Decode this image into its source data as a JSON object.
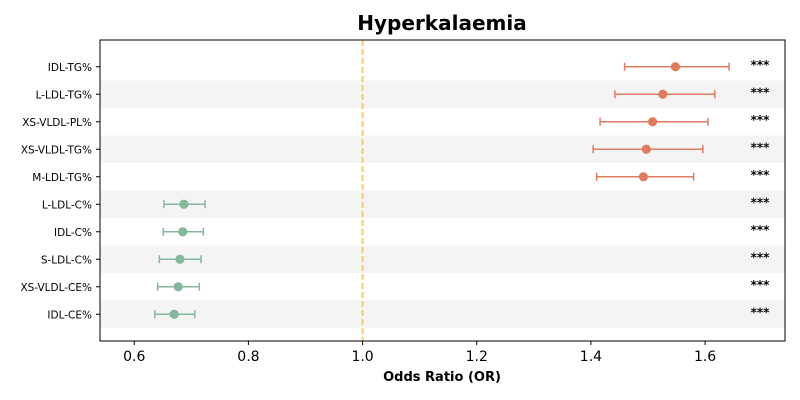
{
  "chart_data": {
    "type": "forest",
    "title": "Hyperkalaemia",
    "xlabel": "Odds Ratio (OR)",
    "xlim": [
      0.54,
      1.74
    ],
    "xticks": [
      "0.6",
      "0.8",
      "1.0",
      "1.2",
      "1.4",
      "1.6"
    ],
    "reference_line": 1.0,
    "reference_line_color": "#f5c97a",
    "row_band_color": "#f4f4f4",
    "colors": {
      "positive": "#e07b5f",
      "negative": "#84b89d"
    },
    "rows": [
      {
        "label": "IDL-TG%",
        "or": 1.548,
        "lo": 1.459,
        "hi": 1.642,
        "sig": "***",
        "group": "positive"
      },
      {
        "label": "L-LDL-TG%",
        "or": 1.526,
        "lo": 1.442,
        "hi": 1.617,
        "sig": "***",
        "group": "positive"
      },
      {
        "label": "XS-VLDL-PL%",
        "or": 1.508,
        "lo": 1.416,
        "hi": 1.605,
        "sig": "***",
        "group": "positive"
      },
      {
        "label": "XS-VLDL-TG%",
        "or": 1.497,
        "lo": 1.404,
        "hi": 1.596,
        "sig": "***",
        "group": "positive"
      },
      {
        "label": "M-LDL-TG%",
        "or": 1.492,
        "lo": 1.41,
        "hi": 1.58,
        "sig": "***",
        "group": "positive"
      },
      {
        "label": "L-LDL-C%",
        "or": 0.687,
        "lo": 0.652,
        "hi": 0.724,
        "sig": "***",
        "group": "negative"
      },
      {
        "label": "IDL-C%",
        "or": 0.685,
        "lo": 0.651,
        "hi": 0.721,
        "sig": "***",
        "group": "negative"
      },
      {
        "label": "S-LDL-C%",
        "or": 0.68,
        "lo": 0.644,
        "hi": 0.717,
        "sig": "***",
        "group": "negative"
      },
      {
        "label": "XS-VLDL-CE%",
        "or": 0.677,
        "lo": 0.641,
        "hi": 0.714,
        "sig": "***",
        "group": "negative"
      },
      {
        "label": "IDL-CE%",
        "or": 0.67,
        "lo": 0.636,
        "hi": 0.706,
        "sig": "***",
        "group": "negative"
      }
    ]
  }
}
